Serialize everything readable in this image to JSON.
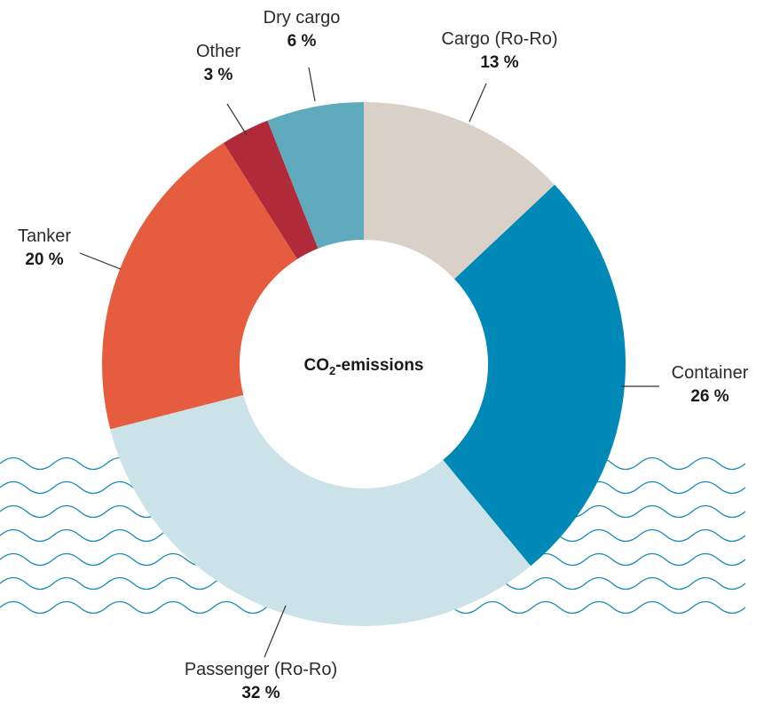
{
  "chart_data": {
    "type": "pie",
    "center_label": {
      "main": "CO",
      "subscript": "2",
      "suffix": "-emissions"
    },
    "slices": [
      {
        "label": "Cargo (Ro-Ro)",
        "value": 13,
        "value_text": "13 %",
        "color": "#d9d0c7"
      },
      {
        "label": "Container",
        "value": 26,
        "value_text": "26 %",
        "color": "#0089b7"
      },
      {
        "label": "Passenger (Ro-Ro)",
        "value": 32,
        "value_text": "32 %",
        "color": "#cbe2e8"
      },
      {
        "label": "Tanker",
        "value": 20,
        "value_text": "20 %",
        "color": "#e55c3e"
      },
      {
        "label": "Other",
        "value": 3,
        "value_text": "3 %",
        "color": "#b02a3a"
      },
      {
        "label": "Dry cargo",
        "value": 6,
        "value_text": "6 %",
        "color": "#5faabd"
      }
    ]
  }
}
